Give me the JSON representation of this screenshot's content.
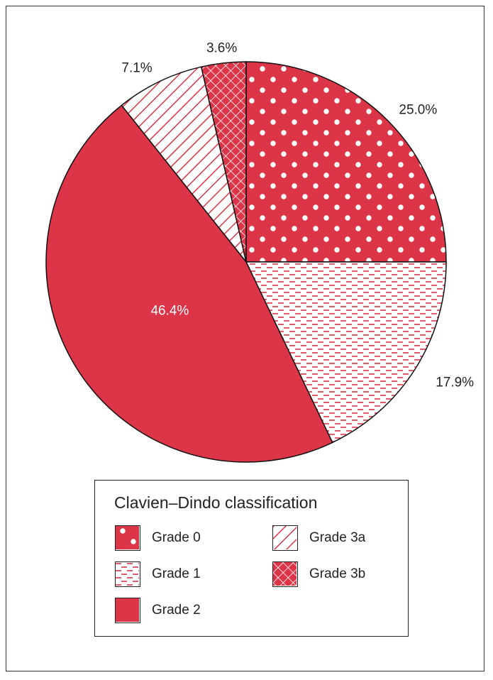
{
  "chart_data": {
    "type": "pie",
    "legend_title": "Clavien–Dindo classification",
    "legend_position": "bottom",
    "slices": [
      {
        "name": "Grade 0",
        "value": 25.0,
        "label": "25.0%",
        "pattern": "dots"
      },
      {
        "name": "Grade 1",
        "value": 17.9,
        "label": "17.9%",
        "pattern": "dashes"
      },
      {
        "name": "Grade 2",
        "value": 46.4,
        "label": "46.4%",
        "pattern": "solid"
      },
      {
        "name": "Grade 3a",
        "value": 7.1,
        "label": "7.1%",
        "pattern": "diagonal"
      },
      {
        "name": "Grade 3b",
        "value": 3.6,
        "label": "3.6%",
        "pattern": "crosshatch"
      }
    ],
    "start": "12 o'clock",
    "direction": "clockwise",
    "colors": {
      "fill": "#dc3548",
      "outline": "#111111",
      "background": "#ffffff"
    }
  }
}
